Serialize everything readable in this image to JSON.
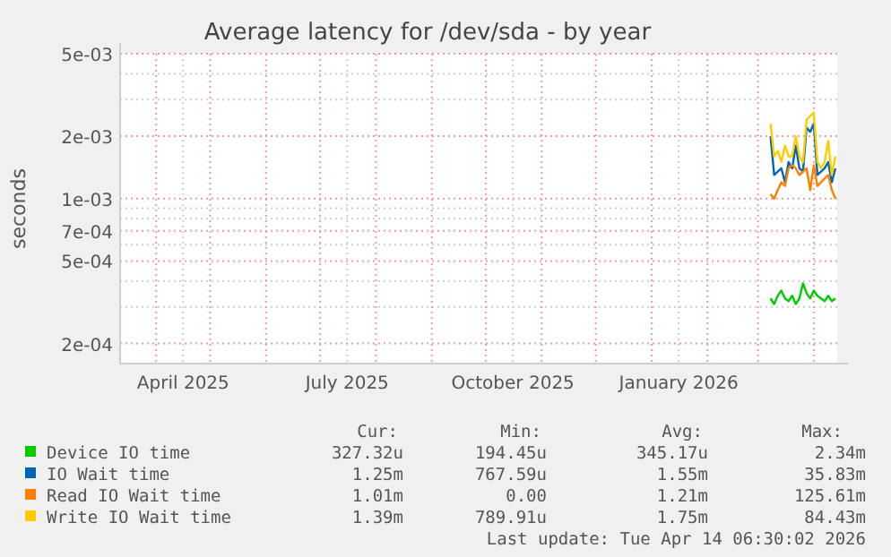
{
  "chart_data": {
    "type": "line",
    "title": "Average latency for /dev/sda - by year",
    "ylabel": "seconds",
    "log": true,
    "grid": true,
    "legend": "bottom",
    "line_style": "solid",
    "marker": "none",
    "x": [
      "2026-03-08",
      "2026-03-10",
      "2026-03-12",
      "2026-03-14",
      "2026-03-16",
      "2026-03-18",
      "2026-03-20",
      "2026-03-22",
      "2026-03-24",
      "2026-03-26",
      "2026-03-28",
      "2026-03-30",
      "2026-04-01",
      "2026-04-03",
      "2026-04-05",
      "2026-04-07",
      "2026-04-09",
      "2026-04-11",
      "2026-04-13"
    ],
    "xlim": [
      "2025-03-12",
      "2026-04-14"
    ],
    "xticks": [
      {
        "value": "2025-04-01",
        "label": null
      },
      {
        "value": "2025-04-16",
        "label": "April 2025"
      },
      {
        "value": "2025-05-01",
        "label": null
      },
      {
        "value": "2025-06-01",
        "label": null
      },
      {
        "value": "2025-07-01",
        "label": null
      },
      {
        "value": "2025-07-16",
        "label": "July 2025"
      },
      {
        "value": "2025-08-01",
        "label": null
      },
      {
        "value": "2025-09-01",
        "label": null
      },
      {
        "value": "2025-10-01",
        "label": null
      },
      {
        "value": "2025-10-16",
        "label": "October 2025"
      },
      {
        "value": "2025-11-01",
        "label": null
      },
      {
        "value": "2025-12-01",
        "label": null
      },
      {
        "value": "2026-01-01",
        "label": null
      },
      {
        "value": "2026-01-16",
        "label": "January 2026"
      },
      {
        "value": "2026-02-01",
        "label": null
      },
      {
        "value": "2026-03-01",
        "label": null
      },
      {
        "value": "2026-04-01",
        "label": null
      }
    ],
    "ylim": [
      0.00016,
      0.005
    ],
    "yticks": [
      {
        "value": 0.0002,
        "label": "2e-04"
      },
      {
        "value": 0.0003,
        "label": null
      },
      {
        "value": 0.0004,
        "label": null
      },
      {
        "value": 0.0005,
        "label": "5e-04"
      },
      {
        "value": 0.0006,
        "label": null
      },
      {
        "value": 0.0007,
        "label": "7e-04"
      },
      {
        "value": 0.0008,
        "label": null
      },
      {
        "value": 0.0009,
        "label": null
      },
      {
        "value": 0.001,
        "label": "1e-03"
      },
      {
        "value": 0.002,
        "label": "2e-03"
      },
      {
        "value": 0.003,
        "label": null
      },
      {
        "value": 0.004,
        "label": null
      },
      {
        "value": 0.005,
        "label": "5e-03"
      }
    ],
    "series": [
      {
        "name": "Device IO time",
        "color": "#00cc00",
        "values": [
          0.00033,
          0.00031,
          0.00034,
          0.00036,
          0.00033,
          0.00032,
          0.00034,
          0.00031,
          0.00033,
          0.00039,
          0.00035,
          0.00033,
          0.00036,
          0.00034,
          0.00033,
          0.00032,
          0.00034,
          0.00032,
          0.00033
        ]
      },
      {
        "name": "IO Wait time",
        "color": "#0066b3",
        "values": [
          0.002,
          0.0013,
          0.00135,
          0.0014,
          0.0012,
          0.0015,
          0.0014,
          0.0018,
          0.0014,
          0.00135,
          0.0022,
          0.0021,
          0.0023,
          0.0013,
          0.00135,
          0.0014,
          0.0015,
          0.0012,
          0.0014
        ]
      },
      {
        "name": "Read IO Wait time",
        "color": "#ff8000",
        "values": [
          0.00105,
          0.001,
          0.0011,
          0.0012,
          0.00115,
          0.0014,
          0.00145,
          0.0014,
          0.0013,
          0.00135,
          0.0014,
          0.0011,
          0.00145,
          0.00115,
          0.0012,
          0.00125,
          0.0013,
          0.0011,
          0.001
        ]
      },
      {
        "name": "Write IO Wait time",
        "color": "#ffcc00",
        "values": [
          0.0023,
          0.0016,
          0.0017,
          0.0015,
          0.0018,
          0.0016,
          0.0016,
          0.002,
          0.0016,
          0.0015,
          0.0024,
          0.0025,
          0.0026,
          0.0015,
          0.0014,
          0.0015,
          0.0019,
          0.0013,
          0.0016
        ]
      }
    ],
    "annotations": [
      "Cur:",
      "Min:",
      "Avg:",
      "Max:",
      "327.32u",
      "194.45u",
      "345.17u",
      "2.34m",
      "1.25m",
      "767.59u",
      "1.55m",
      "35.83m",
      "1.01m",
      "0.00",
      "1.21m",
      "125.61m",
      "1.39m",
      "789.91u",
      "1.75m",
      "84.43m",
      "Last update: Tue Apr 14 06:30:02 2026"
    ]
  }
}
